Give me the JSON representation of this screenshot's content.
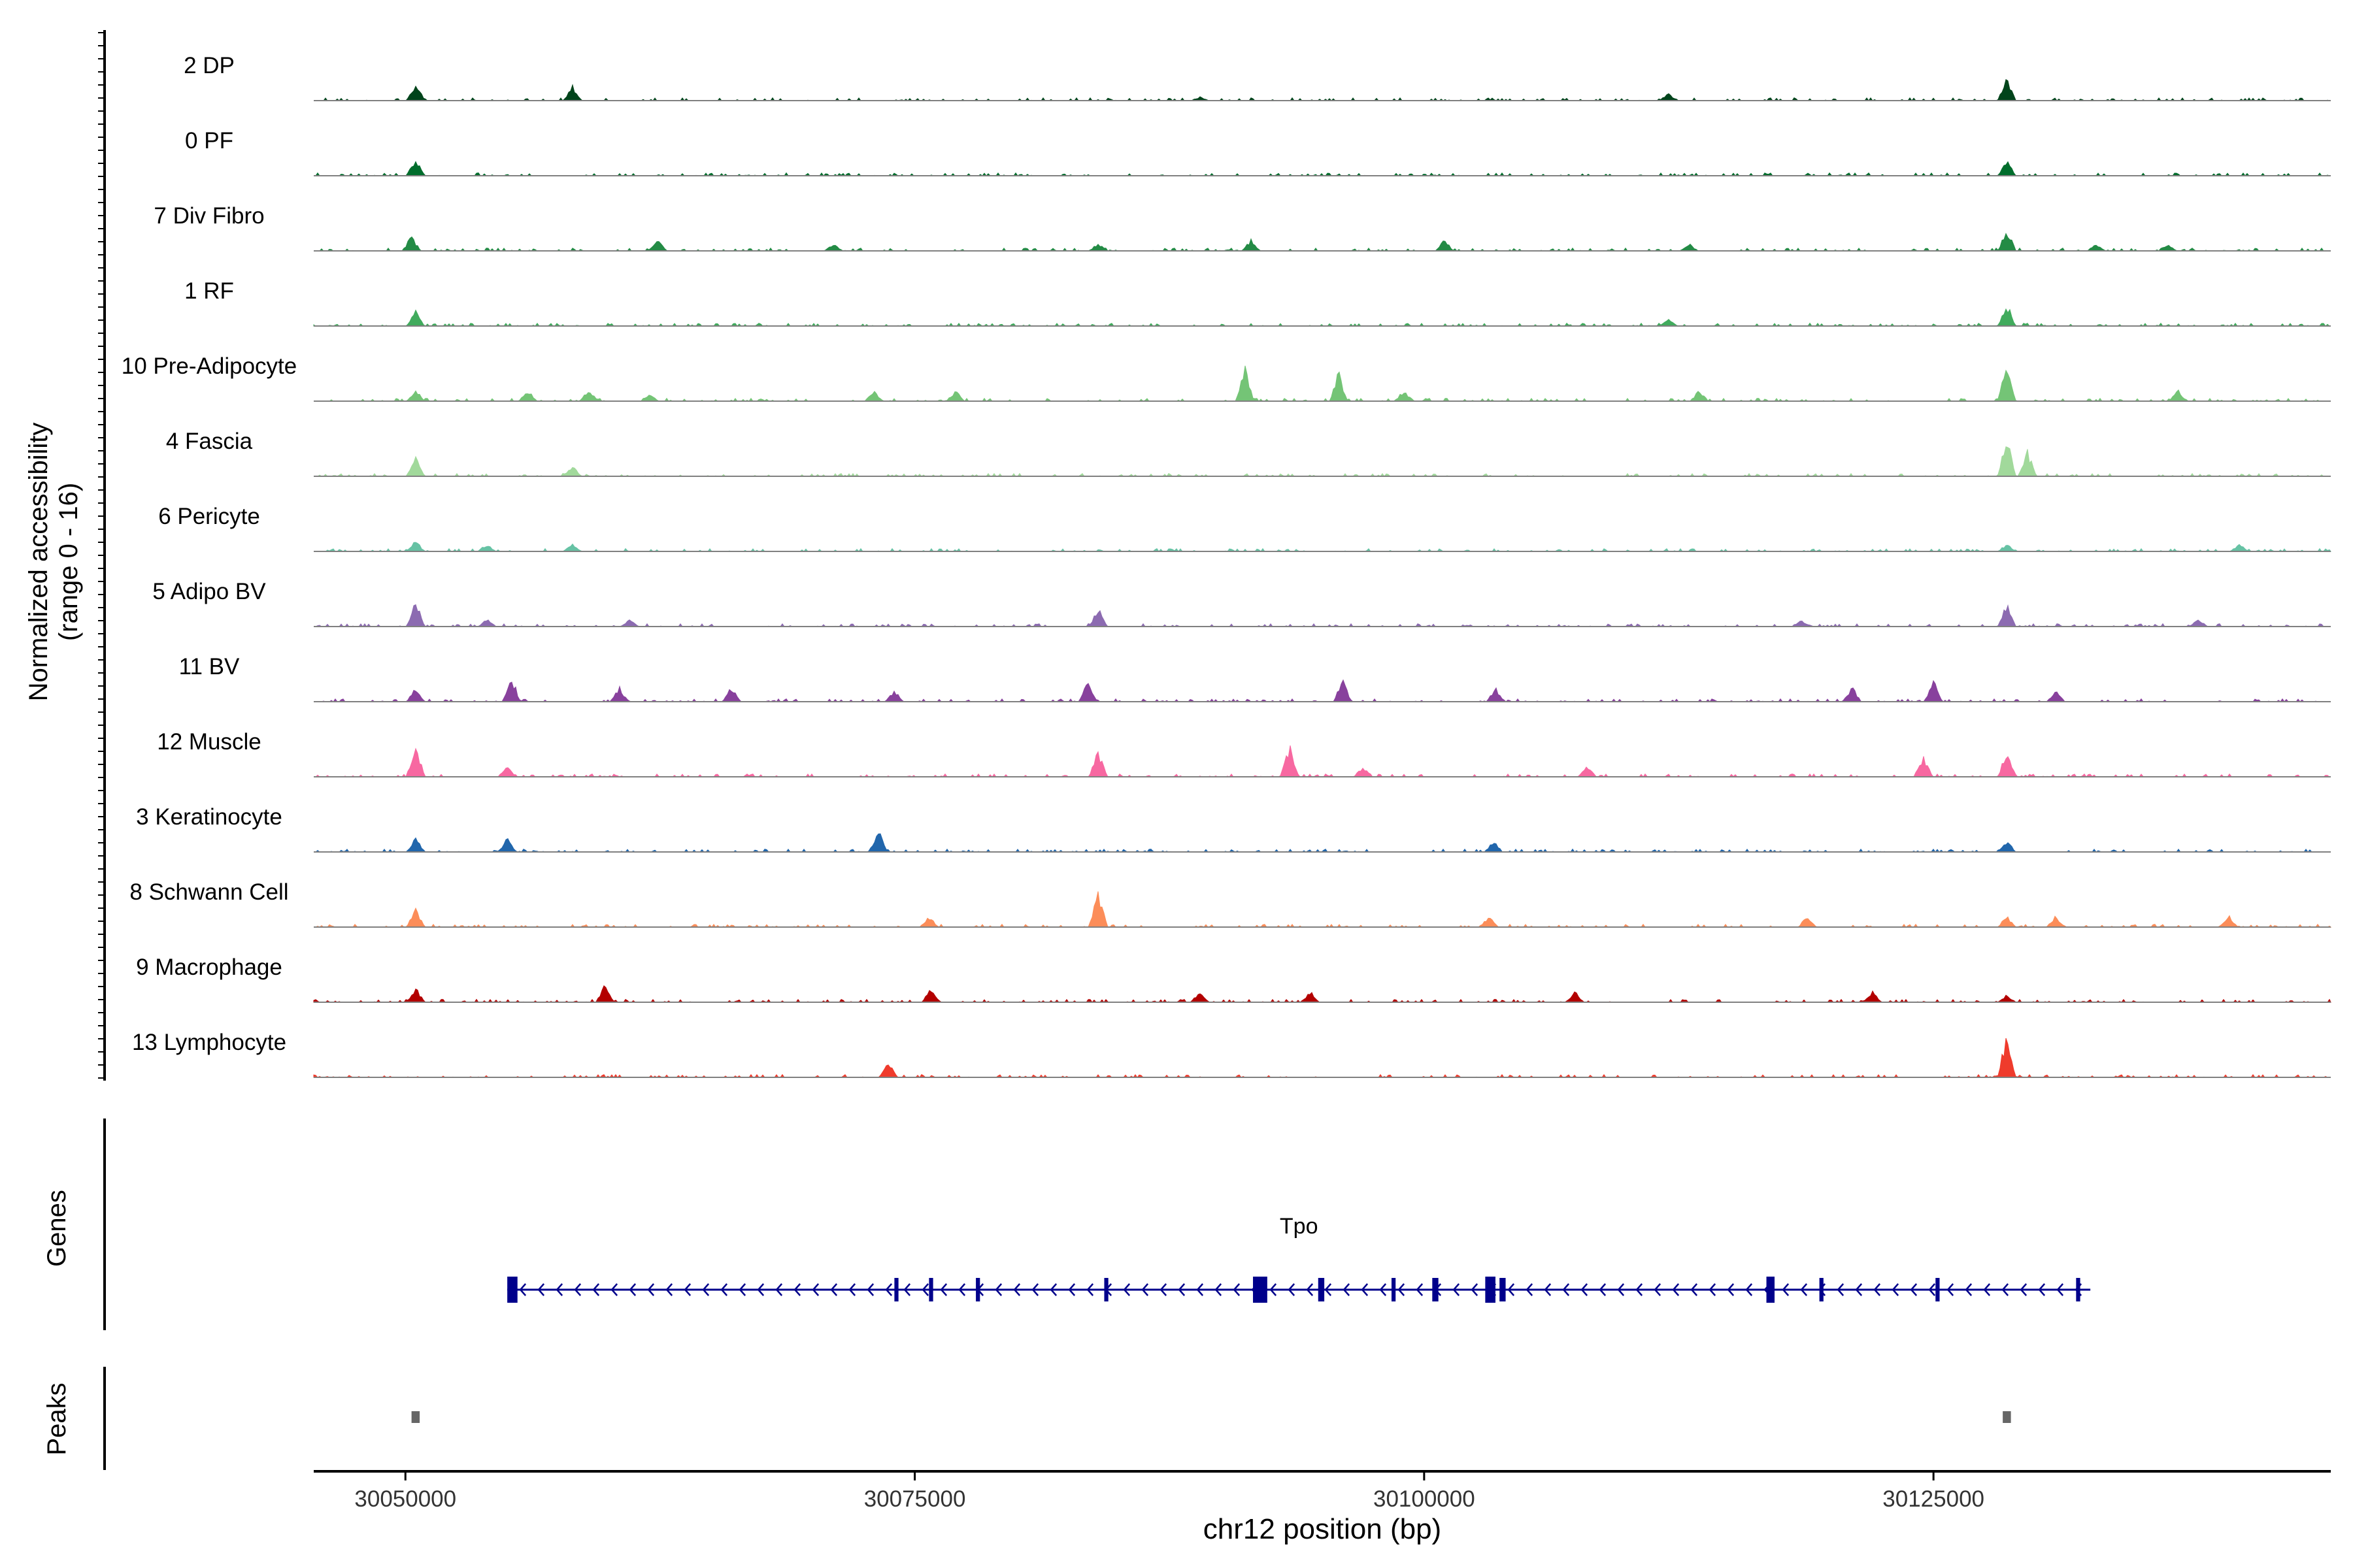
{
  "chart_data": {
    "type": "area",
    "title": "",
    "ylabel_line1": "Normalized accessibility",
    "ylabel_line2": "(range 0 - 16)",
    "xlabel": "chr12 position (bp)",
    "x_range": [
      30045500,
      30144500
    ],
    "x_ticks": [
      30050000,
      30075000,
      30100000,
      30125000
    ],
    "x_tick_labels": [
      "30050000",
      "30075000",
      "30100000",
      "30125000"
    ],
    "y_range": [
      0,
      16
    ],
    "tracks": [
      {
        "name": "2 DP",
        "color": "#00441b",
        "peaks": [
          [
            30050500,
            5
          ],
          [
            30058200,
            4
          ],
          [
            30089000,
            1
          ],
          [
            30112000,
            2
          ],
          [
            30128600,
            6
          ]
        ]
      },
      {
        "name": "0 PF",
        "color": "#006d2c",
        "peaks": [
          [
            30050500,
            5
          ],
          [
            30128600,
            4
          ]
        ]
      },
      {
        "name": "7 Div Fibro",
        "color": "#238b45",
        "peaks": [
          [
            30050300,
            4
          ],
          [
            30062400,
            3
          ],
          [
            30071000,
            2
          ],
          [
            30084000,
            2
          ],
          [
            30091500,
            3
          ],
          [
            30101000,
            3
          ],
          [
            30113000,
            2
          ],
          [
            30128600,
            6
          ],
          [
            30133000,
            2
          ],
          [
            30136500,
            2
          ]
        ]
      },
      {
        "name": "1 RF",
        "color": "#41ab5d",
        "peaks": [
          [
            30050500,
            4
          ],
          [
            30112000,
            2
          ],
          [
            30128600,
            6
          ]
        ]
      },
      {
        "name": "10 Pre-Adipocyte",
        "color": "#74c476",
        "peaks": [
          [
            30050500,
            3
          ],
          [
            30056000,
            3
          ],
          [
            30059000,
            3
          ],
          [
            30062000,
            2
          ],
          [
            30073000,
            3
          ],
          [
            30077000,
            3
          ],
          [
            30091200,
            9
          ],
          [
            30095800,
            8
          ],
          [
            30099000,
            3
          ],
          [
            30113500,
            3
          ],
          [
            30128600,
            10
          ],
          [
            30137000,
            3
          ]
        ]
      },
      {
        "name": "4 Fascia",
        "color": "#a1d99b",
        "peaks": [
          [
            30050500,
            5
          ],
          [
            30058200,
            3
          ],
          [
            30128600,
            11
          ],
          [
            30129600,
            7
          ]
        ]
      },
      {
        "name": "6 Pericyte",
        "color": "#66c2a4",
        "peaks": [
          [
            30050500,
            3
          ],
          [
            30054000,
            2
          ],
          [
            30058200,
            2
          ],
          [
            30128600,
            2
          ],
          [
            30140000,
            2
          ]
        ]
      },
      {
        "name": "5 Adipo BV",
        "color": "#8c6bb1",
        "peaks": [
          [
            30050500,
            7
          ],
          [
            30054000,
            2
          ],
          [
            30061000,
            2
          ],
          [
            30084000,
            5
          ],
          [
            30118500,
            2
          ],
          [
            30128600,
            6
          ],
          [
            30138000,
            2
          ]
        ]
      },
      {
        "name": "11 BV",
        "color": "#88419d",
        "peaks": [
          [
            30050500,
            4
          ],
          [
            30055200,
            7
          ],
          [
            30060500,
            4
          ],
          [
            30066000,
            4
          ],
          [
            30074000,
            3
          ],
          [
            30083500,
            6
          ],
          [
            30096000,
            6
          ],
          [
            30103500,
            4
          ],
          [
            30121000,
            4
          ],
          [
            30125000,
            6
          ],
          [
            30131000,
            3
          ]
        ]
      },
      {
        "name": "12 Muscle",
        "color": "#f768a1",
        "peaks": [
          [
            30050500,
            9
          ],
          [
            30055000,
            3
          ],
          [
            30084000,
            7
          ],
          [
            30093400,
            9
          ],
          [
            30097000,
            3
          ],
          [
            30108000,
            3
          ],
          [
            30124500,
            6
          ],
          [
            30128600,
            7
          ]
        ]
      },
      {
        "name": "3 Keratinocyte",
        "color": "#2166ac",
        "peaks": [
          [
            30050500,
            4
          ],
          [
            30055000,
            4
          ],
          [
            30073200,
            6
          ],
          [
            30103400,
            3
          ],
          [
            30128600,
            3
          ]
        ]
      },
      {
        "name": "8 Schwann Cell",
        "color": "#fc8d59",
        "peaks": [
          [
            30050500,
            5
          ],
          [
            30075700,
            3
          ],
          [
            30084000,
            10
          ],
          [
            30103200,
            3
          ],
          [
            30118800,
            3
          ],
          [
            30128600,
            3
          ],
          [
            30131000,
            3
          ],
          [
            30139500,
            3
          ]
        ]
      },
      {
        "name": "9 Macrophage",
        "color": "#b30000",
        "peaks": [
          [
            30050500,
            4
          ],
          [
            30059800,
            5
          ],
          [
            30075800,
            4
          ],
          [
            30089000,
            3
          ],
          [
            30094400,
            3
          ],
          [
            30107400,
            3
          ],
          [
            30122000,
            3
          ],
          [
            30128600,
            2
          ]
        ]
      },
      {
        "name": "13 Lymphocyte",
        "color": "#ef3b2c",
        "peaks": [
          [
            30073700,
            5
          ],
          [
            30128600,
            12
          ]
        ]
      }
    ],
    "genes_label": "Genes",
    "gene": {
      "name": "Tpo",
      "strand": "-",
      "start": 30055000,
      "end": 30132700,
      "exons": [
        [
          30055000,
          30055500
        ],
        [
          30074000,
          30074200
        ],
        [
          30075700,
          30075900
        ],
        [
          30078000,
          30078200
        ],
        [
          30084300,
          30084500
        ],
        [
          30091600,
          30092300
        ],
        [
          30094800,
          30095100
        ],
        [
          30098400,
          30098600
        ],
        [
          30100400,
          30100700
        ],
        [
          30103000,
          30103500
        ],
        [
          30103700,
          30104000
        ],
        [
          30116800,
          30117200
        ],
        [
          30119400,
          30119600
        ],
        [
          30125100,
          30125300
        ],
        [
          30132000,
          30132200
        ]
      ]
    },
    "peaks_label": "Peaks",
    "peak_regions": [
      [
        30050300,
        30050700
      ],
      [
        30128400,
        30128800
      ]
    ],
    "gene_color": "#00008b",
    "peak_region_color": "#666666"
  }
}
